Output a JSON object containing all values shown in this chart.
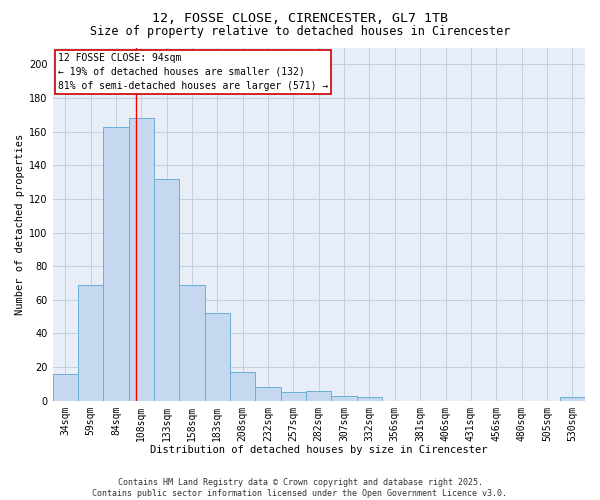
{
  "title1": "12, FOSSE CLOSE, CIRENCESTER, GL7 1TB",
  "title2": "Size of property relative to detached houses in Cirencester",
  "xlabel": "Distribution of detached houses by size in Cirencester",
  "ylabel": "Number of detached properties",
  "categories": [
    "34sqm",
    "59sqm",
    "84sqm",
    "108sqm",
    "133sqm",
    "158sqm",
    "183sqm",
    "208sqm",
    "232sqm",
    "257sqm",
    "282sqm",
    "307sqm",
    "332sqm",
    "356sqm",
    "381sqm",
    "406sqm",
    "431sqm",
    "456sqm",
    "480sqm",
    "505sqm",
    "530sqm"
  ],
  "values": [
    16,
    69,
    163,
    168,
    132,
    69,
    52,
    17,
    8,
    5,
    6,
    3,
    2,
    0,
    0,
    0,
    0,
    0,
    0,
    0,
    2
  ],
  "bar_color": "#c5d8ef",
  "bar_edge_color": "#6aaed6",
  "background_color": "#e8eef8",
  "red_line_x": 2.78,
  "annotation_text": "12 FOSSE CLOSE: 94sqm\n← 19% of detached houses are smaller (132)\n81% of semi-detached houses are larger (571) →",
  "annotation_box_color": "#ffffff",
  "annotation_box_edge": "#cc0000",
  "footer1": "Contains HM Land Registry data © Crown copyright and database right 2025.",
  "footer2": "Contains public sector information licensed under the Open Government Licence v3.0.",
  "ylim": [
    0,
    210
  ],
  "yticks": [
    0,
    20,
    40,
    60,
    80,
    100,
    120,
    140,
    160,
    180,
    200
  ],
  "grid_color": "#c0cfe0",
  "title1_fontsize": 9.5,
  "title2_fontsize": 8.5,
  "xlabel_fontsize": 7.5,
  "ylabel_fontsize": 7.5,
  "tick_fontsize": 7,
  "annotation_fontsize": 7,
  "footer_fontsize": 6
}
